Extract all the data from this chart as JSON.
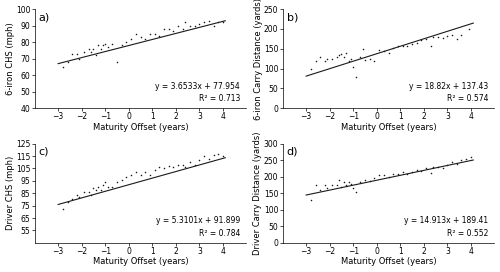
{
  "panels": [
    {
      "label": "a)",
      "ylabel": "6-iron CHS (mph)",
      "xlabel": "Maturity Offset (years)",
      "equation": "y = 3.6533x + 77.954",
      "r2": "R² = 0.713",
      "slope": 3.6533,
      "intercept": 77.954,
      "xlim": [
        -4,
        5
      ],
      "ylim": [
        40,
        100
      ],
      "yticks": [
        40,
        50,
        60,
        70,
        80,
        90,
        100
      ],
      "xticks": [
        -3,
        -2,
        -1,
        0,
        1,
        2,
        3,
        4
      ],
      "scatter_x": [
        -2.8,
        -2.6,
        -2.4,
        -2.2,
        -2.1,
        -1.9,
        -1.7,
        -1.6,
        -1.5,
        -1.4,
        -1.3,
        -1.2,
        -1.1,
        -1.0,
        -0.9,
        -0.7,
        -0.5,
        -0.3,
        -0.1,
        0.1,
        0.3,
        0.5,
        0.7,
        0.9,
        1.1,
        1.3,
        1.5,
        1.7,
        1.9,
        2.1,
        2.3,
        2.4,
        2.6,
        2.8,
        3.0,
        3.2,
        3.4,
        3.6,
        3.8,
        4.0
      ],
      "scatter_y": [
        65,
        68,
        73,
        73,
        70,
        74,
        76,
        74,
        76,
        72,
        78,
        76,
        78,
        79,
        77,
        79,
        68,
        78,
        80,
        82,
        85,
        83,
        82,
        85,
        85,
        84,
        88,
        88,
        87,
        90,
        88,
        92,
        90,
        90,
        91,
        92,
        93,
        90,
        92,
        92
      ]
    },
    {
      "label": "b)",
      "ylabel": "6-iron Carry Distance (yards)",
      "xlabel": "Maturity Offset (years)",
      "equation": "y = 18.82x + 137.43",
      "r2": "R² = 0.574",
      "slope": 18.82,
      "intercept": 137.43,
      "xlim": [
        -4,
        5
      ],
      "ylim": [
        0,
        250
      ],
      "yticks": [
        0,
        50,
        100,
        150,
        200,
        250
      ],
      "xticks": [
        -3,
        -2,
        -1,
        0,
        1,
        2,
        3,
        4
      ],
      "scatter_x": [
        -2.8,
        -2.6,
        -2.4,
        -2.2,
        -2.1,
        -1.9,
        -1.7,
        -1.6,
        -1.5,
        -1.4,
        -1.3,
        -1.2,
        -1.1,
        -1.0,
        -0.9,
        -0.7,
        -0.6,
        -0.5,
        -0.3,
        -0.1,
        0.1,
        0.3,
        0.5,
        0.7,
        0.9,
        1.1,
        1.3,
        1.5,
        1.7,
        1.9,
        2.1,
        2.3,
        2.4,
        2.6,
        2.8,
        3.0,
        3.2,
        3.4,
        3.6,
        3.9
      ],
      "scatter_y": [
        100,
        120,
        130,
        120,
        125,
        125,
        128,
        133,
        138,
        130,
        140,
        118,
        125,
        105,
        80,
        130,
        150,
        122,
        125,
        120,
        148,
        145,
        140,
        152,
        158,
        157,
        158,
        162,
        165,
        172,
        175,
        158,
        180,
        180,
        178,
        182,
        185,
        175,
        185,
        200
      ]
    },
    {
      "label": "c)",
      "ylabel": "Driver CHS (mph)",
      "xlabel": "Maturity Offset (years)",
      "equation": "y = 5.3101x + 91.899",
      "r2": "R² = 0.784",
      "slope": 5.3101,
      "intercept": 91.899,
      "xlim": [
        -4,
        5
      ],
      "ylim": [
        45,
        125
      ],
      "yticks": [
        55,
        65,
        75,
        85,
        95,
        105,
        115,
        125
      ],
      "xticks": [
        -3,
        -2,
        -1,
        0,
        1,
        2,
        3,
        4
      ],
      "scatter_x": [
        -2.8,
        -2.6,
        -2.4,
        -2.2,
        -2.1,
        -1.9,
        -1.7,
        -1.6,
        -1.5,
        -1.4,
        -1.3,
        -1.2,
        -1.1,
        -1.0,
        -0.9,
        -0.7,
        -0.5,
        -0.3,
        -0.1,
        0.1,
        0.3,
        0.5,
        0.7,
        0.9,
        1.1,
        1.3,
        1.5,
        1.7,
        1.9,
        2.1,
        2.3,
        2.4,
        2.6,
        2.8,
        3.0,
        3.2,
        3.4,
        3.6,
        3.8,
        4.0
      ],
      "scatter_y": [
        72,
        78,
        80,
        84,
        82,
        86,
        86,
        84,
        89,
        88,
        90,
        88,
        92,
        94,
        90,
        90,
        94,
        96,
        98,
        100,
        102,
        100,
        102,
        100,
        104,
        106,
        105,
        107,
        106,
        108,
        108,
        106,
        110,
        108,
        112,
        115,
        113,
        116,
        117,
        115
      ]
    },
    {
      "label": "d)",
      "ylabel": "Driver Carry Distance (yards)",
      "xlabel": "Maturity Offset (years)",
      "equation": "y = 14.913x + 189.41",
      "r2": "R² = 0.552",
      "slope": 14.913,
      "intercept": 189.41,
      "xlim": [
        -4,
        5
      ],
      "ylim": [
        0,
        300
      ],
      "yticks": [
        0,
        50,
        100,
        150,
        200,
        250,
        300
      ],
      "xticks": [
        -3,
        -2,
        -1,
        0,
        1,
        2,
        3,
        4
      ],
      "scatter_x": [
        -2.8,
        -2.6,
        -2.4,
        -2.2,
        -2.1,
        -1.9,
        -1.7,
        -1.6,
        -1.5,
        -1.4,
        -1.3,
        -1.2,
        -1.1,
        -1.0,
        -0.9,
        -0.7,
        -0.5,
        -0.3,
        -0.1,
        0.1,
        0.3,
        0.5,
        0.7,
        0.9,
        1.1,
        1.3,
        1.5,
        1.7,
        1.9,
        2.1,
        2.3,
        2.4,
        2.6,
        2.8,
        3.0,
        3.2,
        3.4,
        3.6,
        3.8,
        4.0
      ],
      "scatter_y": [
        130,
        175,
        160,
        175,
        165,
        175,
        175,
        190,
        170,
        185,
        175,
        185,
        178,
        165,
        155,
        185,
        190,
        188,
        195,
        205,
        205,
        198,
        207,
        208,
        215,
        208,
        215,
        220,
        218,
        225,
        210,
        230,
        228,
        225,
        235,
        245,
        240,
        250,
        255,
        260
      ]
    }
  ],
  "marker_size": 5,
  "marker_color": "#1a1a1a",
  "line_color": "#1a1a1a",
  "background_color": "#ffffff",
  "eq_fontsize": 5.5,
  "label_fontsize": 6,
  "tick_fontsize": 5.5,
  "panel_label_fontsize": 8
}
